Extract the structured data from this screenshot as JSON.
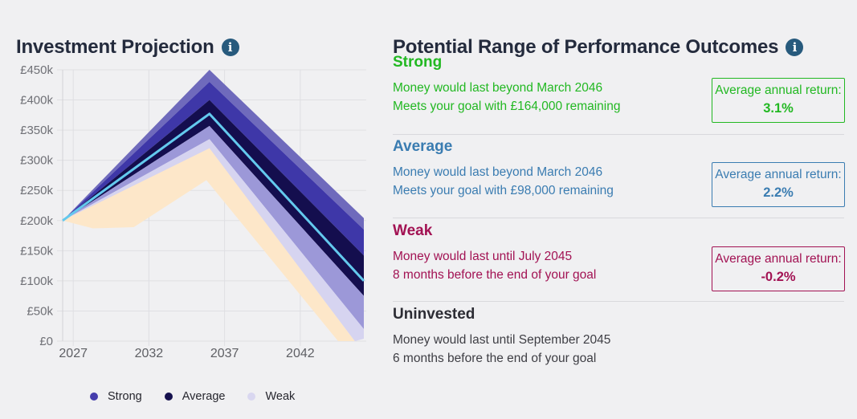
{
  "left_panel": {
    "title": "Investment Projection",
    "info_icon_glyph": "i",
    "legend": [
      {
        "label": "Strong",
        "color": "#453dac"
      },
      {
        "label": "Average",
        "color": "#16114e"
      },
      {
        "label": "Weak",
        "color": "#d9d7f0"
      }
    ]
  },
  "right_panel": {
    "title": "Potential Range of Performance Outcomes",
    "info_icon_glyph": "i",
    "sections": [
      {
        "name": "Strong",
        "color": "#22b822",
        "body_color": "#22b822",
        "line1": "Money would last beyond March 2046",
        "line2": "Meets your goal with £164,000 remaining",
        "return_label": "Average annual return:",
        "return_value": "3.1%"
      },
      {
        "name": "Average",
        "color": "#3a7cb1",
        "body_color": "#3a7cb1",
        "line1": "Money would last beyond March 2046",
        "line2": "Meets your goal with £98,000 remaining",
        "return_label": "Average annual return:",
        "return_value": "2.2%"
      },
      {
        "name": "Weak",
        "color": "#a21253",
        "body_color": "#a21253",
        "line1": "Money would last until July 2045",
        "line2": "8 months before the end of your goal",
        "return_label": "Average annual return:",
        "return_value": "-0.2%"
      },
      {
        "name": "Uninvested",
        "color": "#2c2c34",
        "body_color": "#3e3e44",
        "line1": "Money would last until September 2045",
        "line2": "6 months before the end of your goal",
        "return_label": null,
        "return_value": null
      }
    ]
  },
  "chart_data": {
    "type": "area",
    "title": "Investment Projection",
    "grid": true,
    "legend_position": "bottom",
    "x_axis": {
      "ticks": [
        2027,
        2032,
        2037,
        2042
      ],
      "range": [
        2026.3,
        2046.2
      ]
    },
    "y_axis": {
      "tick_step_k": 50,
      "tick_labels": [
        "£0",
        "£50k",
        "£100k",
        "£150k",
        "£200k",
        "£250k",
        "£300k",
        "£350k",
        "£400k",
        "£450k"
      ],
      "range_k": [
        0,
        450
      ]
    },
    "start_point": {
      "year": 2026.3,
      "value_k": 200
    },
    "peak_year": 2036,
    "bands": [
      {
        "name": "strong-range-outer",
        "color": "#6f6abc",
        "top": [
          [
            2026.3,
            200
          ],
          [
            2036,
            450
          ],
          [
            2046.2,
            204
          ]
        ],
        "bottom": [
          [
            2026.3,
            200
          ],
          [
            2036,
            430
          ],
          [
            2046.2,
            185
          ]
        ]
      },
      {
        "name": "strong-range",
        "color": "#3e37a8",
        "top": [
          [
            2026.3,
            200
          ],
          [
            2036,
            430
          ],
          [
            2046.2,
            185
          ]
        ],
        "bottom": [
          [
            2026.3,
            200
          ],
          [
            2036,
            400
          ],
          [
            2046.2,
            142
          ]
        ]
      },
      {
        "name": "average-range",
        "color": "#140e4e",
        "top": [
          [
            2026.3,
            200
          ],
          [
            2036,
            400
          ],
          [
            2046.2,
            142
          ]
        ],
        "bottom": [
          [
            2026.3,
            200
          ],
          [
            2036,
            357
          ],
          [
            2046.2,
            75
          ]
        ]
      },
      {
        "name": "weak-range-upper",
        "color": "#9c98d8",
        "top": [
          [
            2026.3,
            200
          ],
          [
            2036,
            357
          ],
          [
            2046.2,
            75
          ]
        ],
        "bottom": [
          [
            2026.3,
            200
          ],
          [
            2036,
            335
          ],
          [
            2046.2,
            20
          ]
        ]
      },
      {
        "name": "weak-range",
        "color": "#d6d4f0",
        "top": [
          [
            2026.3,
            200
          ],
          [
            2036,
            335
          ],
          [
            2046.2,
            20
          ]
        ],
        "bottom": [
          [
            2026.3,
            200
          ],
          [
            2036,
            318
          ],
          [
            2045.6,
            0
          ],
          [
            2046.2,
            4
          ]
        ]
      },
      {
        "name": "uninvested-range",
        "color": "#fde7c9",
        "top": [
          [
            2026.3,
            200
          ],
          [
            2036,
            320
          ],
          [
            2045.6,
            0
          ]
        ],
        "bottom": [
          [
            2026.3,
            200
          ],
          [
            2028.3,
            187
          ],
          [
            2031,
            189
          ],
          [
            2035.8,
            267
          ],
          [
            2044.5,
            0
          ]
        ]
      }
    ],
    "average_line": {
      "name": "average-projection-line",
      "color": "#63c9ee",
      "points": [
        [
          2026.3,
          200
        ],
        [
          2036,
          377
        ],
        [
          2046.2,
          100
        ]
      ]
    }
  },
  "style": {
    "background": "#f0f0f2",
    "title_color": "#242b3d",
    "info_icon_color": "#275a7d",
    "gridline_color": "#dfdfe3",
    "axis_label_color": "#6f7076"
  }
}
